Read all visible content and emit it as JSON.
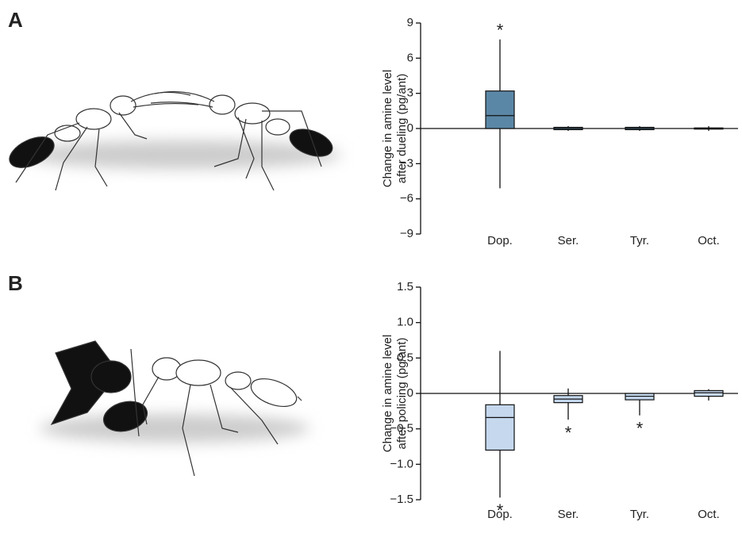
{
  "chart_data": [
    {
      "type": "box",
      "panel_label": "A",
      "ylabel": [
        "Change in amine level",
        "after dueling (pg/ant)"
      ],
      "categories": [
        "Dop.",
        "Ser.",
        "Tyr.",
        "Oct."
      ],
      "color": "#5b87a6",
      "boxes": [
        {
          "whislo": -5.1,
          "q1": 0,
          "med": 1.1,
          "q3": 3.2,
          "whishi": 7.6
        },
        {
          "whislo": -0.2,
          "q1": -0.1,
          "med": 0,
          "q3": 0.1,
          "whishi": 0.2
        },
        {
          "whislo": -0.2,
          "q1": -0.1,
          "med": 0,
          "q3": 0.1,
          "whishi": 0.2
        },
        {
          "whislo": -0.2,
          "q1": -0.05,
          "med": 0,
          "q3": 0.05,
          "whishi": 0.2
        }
      ],
      "significance": [
        "*",
        null,
        null,
        null
      ],
      "ylim": [
        -9,
        9
      ],
      "yticks": [
        {
          "value": -9,
          "label": "−9"
        },
        {
          "value": -6,
          "label": "−6"
        },
        {
          "value": -3,
          "label": "−3"
        },
        0,
        3,
        6,
        9
      ]
    },
    {
      "type": "box",
      "panel_label": "B",
      "ylabel": [
        "Change in amine level",
        "after policing (pg/ant)"
      ],
      "categories": [
        "Dop.",
        "Ser.",
        "Tyr.",
        "Oct."
      ],
      "color": "#c5d8ee",
      "boxes": [
        {
          "whislo": -1.47,
          "q1": -0.8,
          "med": -0.34,
          "q3": -0.16,
          "whishi": 0.6
        },
        {
          "whislo": -0.37,
          "q1": -0.13,
          "med": -0.08,
          "q3": -0.03,
          "whishi": 0.07
        },
        {
          "whislo": -0.31,
          "q1": -0.09,
          "med": -0.04,
          "q3": 0,
          "whishi": 0
        },
        {
          "whislo": -0.1,
          "q1": -0.04,
          "med": 0.01,
          "q3": 0.04,
          "whishi": 0.06
        }
      ],
      "significance": [
        "*",
        "*",
        "*",
        null
      ],
      "ylim": [
        -1.5,
        1.5
      ],
      "yticks": [
        {
          "value": -1.5,
          "label": "−1.5"
        },
        {
          "value": -1.0,
          "label": "−1.0"
        },
        {
          "value": -0.5,
          "label": "−0.5"
        },
        {
          "value": 0,
          "label": "0"
        },
        {
          "value": 0.5,
          "label": "0.5"
        },
        {
          "value": 1.0,
          "label": "1.0"
        },
        {
          "value": 1.5,
          "label": "1.5"
        }
      ]
    }
  ]
}
